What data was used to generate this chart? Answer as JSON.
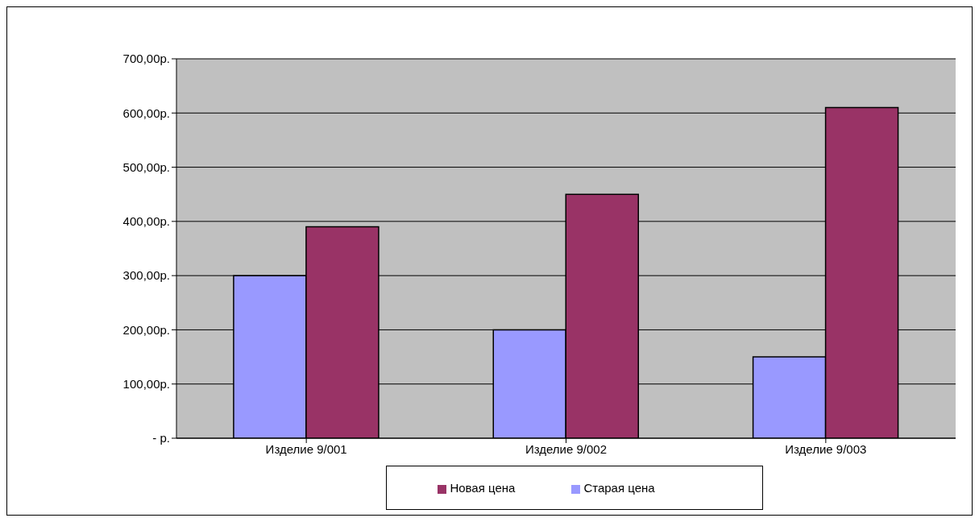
{
  "chart_data": {
    "type": "bar",
    "categories": [
      "Изделие 9/001",
      "Изделие 9/002",
      "Изделие 9/003"
    ],
    "series": [
      {
        "name": "Старая цена",
        "color": "#9999ff",
        "values": [
          300,
          200,
          150
        ]
      },
      {
        "name": "Новая цена",
        "color": "#993366",
        "values": [
          390,
          450,
          610
        ]
      }
    ],
    "ylim": [
      0,
      700
    ],
    "yticks": [
      {
        "value": 0,
        "label": "-  р."
      },
      {
        "value": 100,
        "label": "100,00р."
      },
      {
        "value": 200,
        "label": "200,00р."
      },
      {
        "value": 300,
        "label": "300,00р."
      },
      {
        "value": 400,
        "label": "400,00р."
      },
      {
        "value": 500,
        "label": "500,00р."
      },
      {
        "value": 600,
        "label": "600,00р."
      },
      {
        "value": 700,
        "label": "700,00р."
      }
    ],
    "grid": "y",
    "legend": "bottom"
  }
}
